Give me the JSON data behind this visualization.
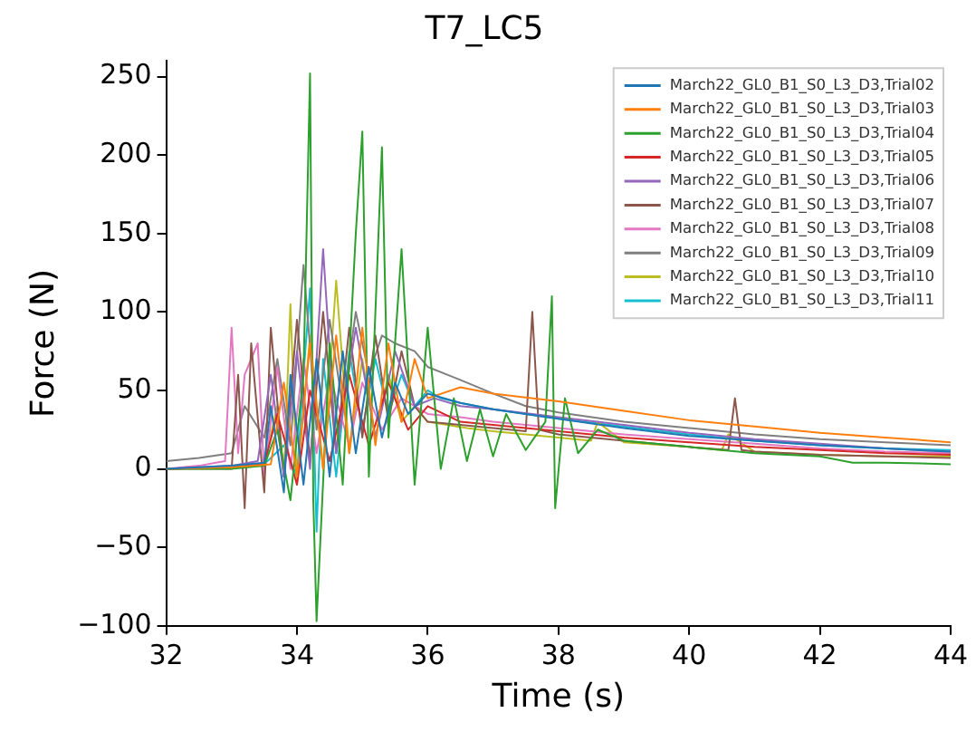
{
  "chart_data": {
    "type": "line",
    "title": "T7_LC5",
    "xlabel": "Time (s)",
    "ylabel": "Force (N)",
    "xlim": [
      32,
      44
    ],
    "xticks": [
      32,
      34,
      36,
      38,
      40,
      42,
      44
    ],
    "ylim": [
      -100,
      260
    ],
    "yticks": [
      -100,
      -50,
      0,
      50,
      100,
      150,
      200,
      250
    ],
    "grid": false,
    "legend": "top right",
    "marker": "none",
    "line_style": "solid",
    "series": [
      {
        "name": "March22_GL0_B1_S0_L3_D3,Trial02",
        "color": "#1f77b4",
        "x": [
          32,
          33,
          33.5,
          33.6,
          33.8,
          33.9,
          34.1,
          34.3,
          34.5,
          34.7,
          34.9,
          35.1,
          35.3,
          35.5,
          35.7,
          36,
          36.5,
          37,
          38,
          39,
          40,
          41,
          42,
          43,
          44
        ],
        "values": [
          0,
          2,
          4,
          40,
          -15,
          60,
          -10,
          70,
          -5,
          75,
          10,
          65,
          20,
          55,
          35,
          48,
          42,
          38,
          32,
          26,
          21,
          18,
          15,
          13,
          11
        ]
      },
      {
        "name": "March22_GL0_B1_S0_L3_D3,Trial03",
        "color": "#ff7f0e",
        "x": [
          32,
          33,
          33.6,
          33.8,
          34,
          34.2,
          34.4,
          34.6,
          34.8,
          35,
          35.2,
          35.4,
          35.6,
          35.8,
          36,
          36.5,
          37,
          38,
          39,
          40,
          41,
          42,
          43,
          44
        ],
        "values": [
          0,
          1,
          3,
          55,
          -5,
          80,
          0,
          85,
          10,
          90,
          15,
          80,
          30,
          70,
          45,
          52,
          48,
          43,
          37,
          31,
          27,
          23,
          20,
          17
        ]
      },
      {
        "name": "March22_GL0_B1_S0_L3_D3,Trial04",
        "color": "#2ca02c",
        "x": [
          32,
          33,
          33.5,
          33.7,
          33.9,
          34.1,
          34.2,
          34.25,
          34.3,
          34.5,
          34.7,
          34.9,
          35,
          35.1,
          35.3,
          35.4,
          35.6,
          35.8,
          36,
          36.2,
          36.4,
          36.6,
          36.8,
          37,
          37.2,
          37.5,
          37.8,
          37.9,
          37.95,
          38.1,
          38.3,
          38.6,
          39,
          40,
          41,
          42,
          42.5,
          43,
          44
        ],
        "values": [
          0,
          0,
          2,
          25,
          -20,
          60,
          252,
          -20,
          -97,
          80,
          -10,
          150,
          215,
          -5,
          205,
          20,
          140,
          -10,
          90,
          0,
          45,
          5,
          38,
          8,
          35,
          12,
          30,
          110,
          -25,
          45,
          10,
          25,
          18,
          14,
          10,
          8,
          4,
          4,
          3
        ]
      },
      {
        "name": "March22_GL0_B1_S0_L3_D3,Trial05",
        "color": "#d62728",
        "x": [
          32,
          33,
          33.5,
          33.7,
          34,
          34.2,
          34.5,
          34.8,
          35.1,
          35.4,
          35.7,
          36,
          36.5,
          37,
          38,
          39,
          40,
          41,
          42,
          43,
          44
        ],
        "values": [
          0,
          1,
          3,
          35,
          -10,
          50,
          5,
          60,
          15,
          55,
          25,
          40,
          30,
          28,
          24,
          20,
          17,
          14,
          12,
          10,
          9
        ]
      },
      {
        "name": "March22_GL0_B1_S0_L3_D3,Trial06",
        "color": "#9467bd",
        "x": [
          32,
          33,
          33.4,
          33.6,
          33.8,
          34,
          34.2,
          34.4,
          34.6,
          34.9,
          35.2,
          35.5,
          35.8,
          36.1,
          36.5,
          37,
          38,
          39,
          40,
          41,
          42,
          43,
          44
        ],
        "values": [
          0,
          2,
          5,
          60,
          -5,
          75,
          0,
          140,
          10,
          90,
          20,
          75,
          40,
          45,
          40,
          38,
          33,
          28,
          23,
          19,
          16,
          13,
          11
        ]
      },
      {
        "name": "March22_GL0_B1_S0_L3_D3,Trial07",
        "color": "#8c564b",
        "x": [
          32,
          33,
          33.1,
          33.2,
          33.3,
          33.5,
          33.6,
          33.8,
          34,
          34.2,
          34.4,
          34.6,
          34.8,
          35,
          35.2,
          35.4,
          35.6,
          35.8,
          36,
          36.5,
          37,
          37.5,
          37.6,
          37.7,
          38,
          39,
          40,
          40.6,
          40.7,
          40.8,
          41,
          42,
          43,
          44
        ],
        "values": [
          0,
          0,
          60,
          -25,
          80,
          -15,
          90,
          -5,
          95,
          5,
          100,
          10,
          90,
          20,
          85,
          30,
          75,
          40,
          30,
          28,
          26,
          24,
          100,
          25,
          22,
          18,
          14,
          12,
          45,
          12,
          11,
          9,
          8,
          7
        ]
      },
      {
        "name": "March22_GL0_B1_S0_L3_D3,Trial08",
        "color": "#e377c2",
        "x": [
          32,
          32.5,
          32.9,
          33,
          33.1,
          33.2,
          33.4,
          33.5,
          33.7,
          33.9,
          34.1,
          34.3,
          34.5,
          34.8,
          35,
          35.3,
          35.6,
          36,
          36.5,
          37,
          38,
          39,
          40,
          41,
          42,
          43,
          44
        ],
        "values": [
          0,
          2,
          5,
          90,
          10,
          60,
          80,
          -5,
          65,
          0,
          70,
          10,
          60,
          15,
          55,
          25,
          45,
          35,
          33,
          30,
          26,
          22,
          19,
          16,
          13,
          11,
          10
        ]
      },
      {
        "name": "March22_GL0_B1_S0_L3_D3,Trial09",
        "color": "#7f7f7f",
        "x": [
          32,
          32.5,
          33,
          33.2,
          33.5,
          33.7,
          33.9,
          34.1,
          34.3,
          34.5,
          34.7,
          34.9,
          35.1,
          35.3,
          35.5,
          35.8,
          36,
          36.3,
          36.6,
          37,
          37.5,
          38,
          39,
          40,
          41,
          42,
          43,
          44
        ],
        "values": [
          5,
          7,
          10,
          40,
          20,
          70,
          15,
          130,
          25,
          95,
          40,
          100,
          60,
          85,
          80,
          75,
          65,
          60,
          55,
          48,
          40,
          36,
          30,
          26,
          22,
          19,
          17,
          15
        ]
      },
      {
        "name": "March22_GL0_B1_S0_L3_D3,Trial10",
        "color": "#bcbd22",
        "x": [
          32,
          33,
          33.5,
          33.7,
          33.8,
          33.9,
          34,
          34.2,
          34.4,
          34.6,
          34.8,
          35,
          35.2,
          35.4,
          35.6,
          35.8,
          36,
          36.3,
          36.6,
          37,
          37.5,
          38,
          38.5,
          38.6,
          39,
          40,
          40.5,
          40.6,
          41,
          42,
          43,
          44
        ],
        "values": [
          0,
          1,
          3,
          40,
          -5,
          105,
          -10,
          85,
          0,
          120,
          10,
          70,
          20,
          60,
          30,
          40,
          30,
          28,
          26,
          24,
          22,
          20,
          18,
          30,
          17,
          14,
          12,
          22,
          11,
          9,
          8,
          8
        ]
      },
      {
        "name": "March22_GL0_B1_S0_L3_D3,Trial11",
        "color": "#17becf",
        "x": [
          32,
          33,
          33.5,
          33.8,
          34,
          34.1,
          34.2,
          34.3,
          34.4,
          34.6,
          34.8,
          35,
          35.2,
          35.4,
          35.6,
          35.8,
          36,
          36.2,
          36.5,
          37,
          38,
          39,
          40,
          41,
          42,
          43,
          44
        ],
        "values": [
          0,
          1,
          3,
          15,
          -5,
          60,
          115,
          -40,
          70,
          -5,
          75,
          25,
          70,
          35,
          60,
          40,
          50,
          45,
          42,
          38,
          32,
          27,
          22,
          18,
          15,
          13,
          12
        ]
      }
    ]
  }
}
